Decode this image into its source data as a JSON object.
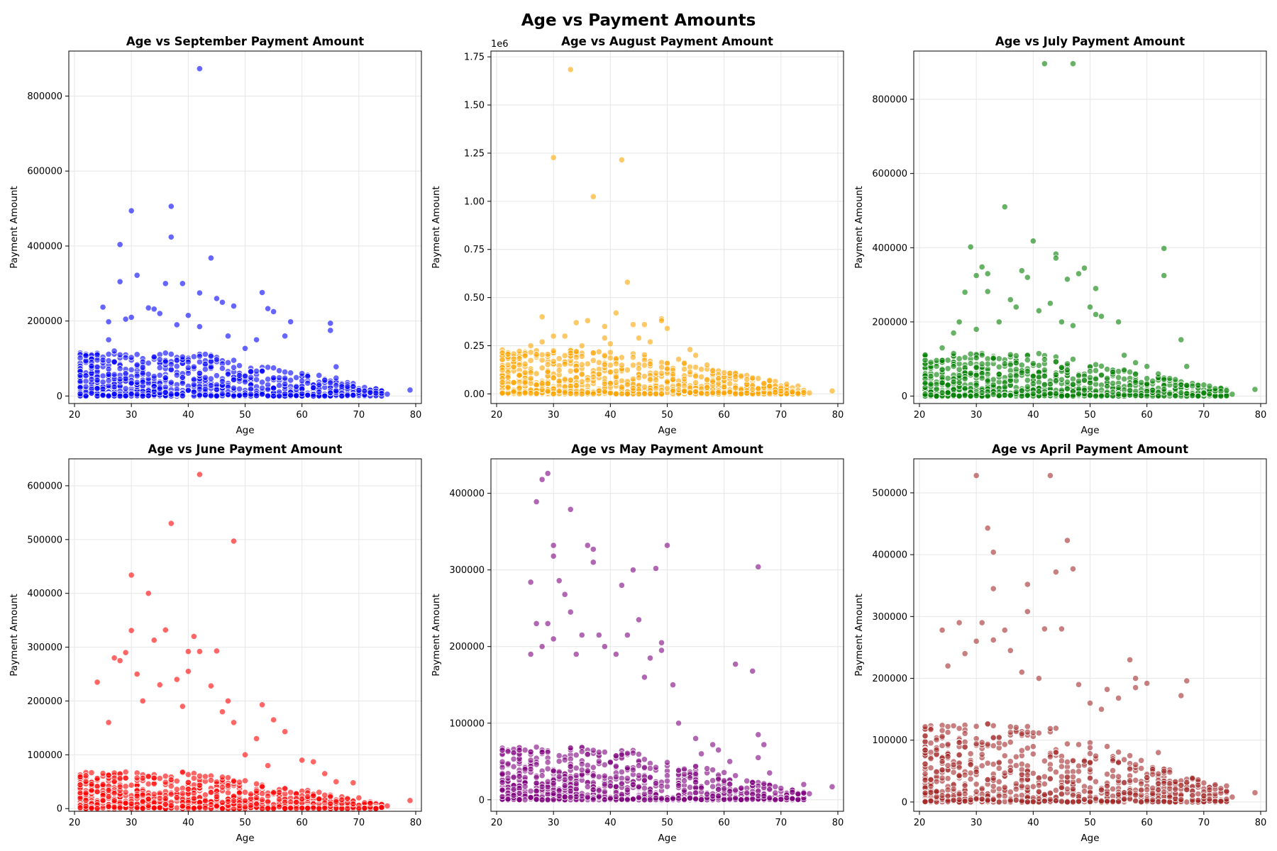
{
  "figure": {
    "suptitle": "Age vs Payment Amounts"
  },
  "chart_data": [
    {
      "type": "scatter",
      "title": "Age vs September Payment Amount",
      "xlabel": "Age",
      "ylabel": "Payment Amount",
      "color": "#0000ff",
      "xlim": [
        19,
        81
      ],
      "ylim": [
        -20000,
        920000
      ],
      "xticks": [
        20,
        30,
        40,
        50,
        60,
        70,
        80
      ],
      "yticks": [
        0,
        200000,
        400000,
        600000,
        800000
      ],
      "yticklabels": [
        "0",
        "200000",
        "400000",
        "600000",
        "800000"
      ],
      "offset_label": "",
      "grid": true,
      "density_ymax": 100000,
      "points": [
        [
          42,
          873000
        ],
        [
          37,
          506000
        ],
        [
          30,
          494000
        ],
        [
          37,
          424000
        ],
        [
          28,
          404000
        ],
        [
          44,
          368000
        ],
        [
          31,
          322000
        ],
        [
          28,
          305000
        ],
        [
          36,
          300000
        ],
        [
          39,
          300000
        ],
        [
          53,
          276000
        ],
        [
          42,
          275000
        ],
        [
          45,
          260000
        ],
        [
          46,
          250000
        ],
        [
          48,
          240000
        ],
        [
          54,
          233000
        ],
        [
          55,
          225000
        ],
        [
          25,
          237000
        ],
        [
          33,
          235000
        ],
        [
          34,
          232000
        ],
        [
          35,
          220000
        ],
        [
          26,
          198000
        ],
        [
          29,
          205000
        ],
        [
          30,
          210000
        ],
        [
          40,
          215000
        ],
        [
          58,
          198000
        ],
        [
          65,
          194000
        ],
        [
          65,
          175000
        ],
        [
          57,
          160000
        ],
        [
          50,
          127000
        ],
        [
          60,
          60000
        ],
        [
          63,
          55000
        ],
        [
          66,
          78000
        ],
        [
          66,
          48000
        ],
        [
          68,
          25000
        ],
        [
          70,
          15000
        ],
        [
          72,
          10000
        ],
        [
          73,
          8000
        ],
        [
          75,
          5000
        ],
        [
          79,
          16000
        ],
        [
          38,
          190000
        ],
        [
          42,
          185000
        ],
        [
          47,
          160000
        ],
        [
          52,
          150000
        ],
        [
          23,
          80000
        ],
        [
          24,
          110000
        ],
        [
          26,
          150000
        ],
        [
          27,
          120000
        ]
      ]
    },
    {
      "type": "scatter",
      "title": "Age vs August Payment Amount",
      "xlabel": "Age",
      "ylabel": "Payment Amount",
      "color": "#ffa500",
      "xlim": [
        19,
        81
      ],
      "ylim": [
        -50000,
        1780000
      ],
      "xticks": [
        20,
        30,
        40,
        50,
        60,
        70,
        80
      ],
      "yticks": [
        0,
        250000,
        500000,
        750000,
        1000000,
        1250000,
        1500000,
        1750000
      ],
      "yticklabels": [
        "0.00",
        "0.25",
        "0.50",
        "0.75",
        "1.00",
        "1.25",
        "1.50",
        "1.75"
      ],
      "offset_label": "1e6",
      "grid": true,
      "density_ymax": 200000,
      "points": [
        [
          33,
          1684000
        ],
        [
          30,
          1227000
        ],
        [
          42,
          1215000
        ],
        [
          37,
          1024000
        ],
        [
          43,
          580000
        ],
        [
          41,
          420000
        ],
        [
          28,
          400000
        ],
        [
          36,
          380000
        ],
        [
          49,
          390000
        ],
        [
          49,
          380000
        ],
        [
          34,
          370000
        ],
        [
          39,
          350000
        ],
        [
          44,
          360000
        ],
        [
          46,
          360000
        ],
        [
          30,
          300000
        ],
        [
          32,
          300000
        ],
        [
          39,
          290000
        ],
        [
          45,
          290000
        ],
        [
          50,
          340000
        ],
        [
          54,
          230000
        ],
        [
          57,
          150000
        ],
        [
          60,
          110000
        ],
        [
          62,
          90000
        ],
        [
          64,
          75000
        ],
        [
          66,
          80000
        ],
        [
          68,
          40000
        ],
        [
          70,
          15000
        ],
        [
          72,
          10000
        ],
        [
          75,
          5000
        ],
        [
          79,
          15000
        ],
        [
          26,
          250000
        ],
        [
          28,
          270000
        ],
        [
          35,
          250000
        ],
        [
          40,
          260000
        ],
        [
          47,
          270000
        ],
        [
          52,
          180000
        ],
        [
          55,
          200000
        ],
        [
          58,
          120000
        ]
      ]
    },
    {
      "type": "scatter",
      "title": "Age vs July Payment Amount",
      "xlabel": "Age",
      "ylabel": "Payment Amount",
      "color": "#008000",
      "xlim": [
        19,
        81
      ],
      "ylim": [
        -20000,
        930000
      ],
      "xticks": [
        20,
        30,
        40,
        50,
        60,
        70,
        80
      ],
      "yticks": [
        0,
        200000,
        400000,
        600000,
        800000
      ],
      "yticklabels": [
        "0",
        "200000",
        "400000",
        "600000",
        "800000"
      ],
      "offset_label": "",
      "grid": true,
      "density_ymax": 100000,
      "points": [
        [
          42,
          896000
        ],
        [
          47,
          896000
        ],
        [
          35,
          510000
        ],
        [
          40,
          418000
        ],
        [
          29,
          402000
        ],
        [
          63,
          398000
        ],
        [
          44,
          383000
        ],
        [
          44,
          372000
        ],
        [
          31,
          348000
        ],
        [
          38,
          338000
        ],
        [
          49,
          345000
        ],
        [
          48,
          330000
        ],
        [
          30,
          325000
        ],
        [
          32,
          330000
        ],
        [
          39,
          320000
        ],
        [
          63,
          325000
        ],
        [
          46,
          315000
        ],
        [
          51,
          290000
        ],
        [
          28,
          280000
        ],
        [
          32,
          282000
        ],
        [
          36,
          260000
        ],
        [
          43,
          250000
        ],
        [
          41,
          230000
        ],
        [
          50,
          240000
        ],
        [
          37,
          240000
        ],
        [
          51,
          220000
        ],
        [
          52,
          215000
        ],
        [
          55,
          200000
        ],
        [
          66,
          152000
        ],
        [
          60,
          80000
        ],
        [
          62,
          60000
        ],
        [
          67,
          80000
        ],
        [
          70,
          30000
        ],
        [
          72,
          20000
        ],
        [
          74,
          15000
        ],
        [
          75,
          5000
        ],
        [
          79,
          18000
        ],
        [
          24,
          130000
        ],
        [
          26,
          170000
        ],
        [
          27,
          200000
        ],
        [
          30,
          180000
        ],
        [
          34,
          200000
        ],
        [
          45,
          200000
        ],
        [
          47,
          190000
        ],
        [
          56,
          110000
        ],
        [
          58,
          90000
        ]
      ]
    },
    {
      "type": "scatter",
      "title": "Age vs June Payment Amount",
      "xlabel": "Age",
      "ylabel": "Payment Amount",
      "color": "#ff0000",
      "xlim": [
        19,
        81
      ],
      "ylim": [
        -5000,
        650000
      ],
      "xticks": [
        20,
        30,
        40,
        50,
        60,
        70,
        80
      ],
      "yticks": [
        0,
        100000,
        200000,
        300000,
        400000,
        500000,
        600000
      ],
      "yticklabels": [
        "0",
        "100000",
        "200000",
        "300000",
        "400000",
        "500000",
        "600000"
      ],
      "offset_label": "",
      "grid": true,
      "density_ymax": 60000,
      "points": [
        [
          42,
          621000
        ],
        [
          37,
          530000
        ],
        [
          48,
          497000
        ],
        [
          30,
          434000
        ],
        [
          33,
          400000
        ],
        [
          36,
          332000
        ],
        [
          30,
          331000
        ],
        [
          34,
          313000
        ],
        [
          41,
          320000
        ],
        [
          40,
          292000
        ],
        [
          42,
          292000
        ],
        [
          45,
          293000
        ],
        [
          28,
          275000
        ],
        [
          29,
          290000
        ],
        [
          31,
          250000
        ],
        [
          35,
          230000
        ],
        [
          40,
          255000
        ],
        [
          24,
          235000
        ],
        [
          27,
          280000
        ],
        [
          38,
          240000
        ],
        [
          44,
          228000
        ],
        [
          47,
          200000
        ],
        [
          53,
          193000
        ],
        [
          48,
          160000
        ],
        [
          55,
          165000
        ],
        [
          57,
          143000
        ],
        [
          52,
          130000
        ],
        [
          60,
          90000
        ],
        [
          62,
          87000
        ],
        [
          64,
          65000
        ],
        [
          66,
          50000
        ],
        [
          69,
          48000
        ],
        [
          70,
          20000
        ],
        [
          72,
          10000
        ],
        [
          75,
          5000
        ],
        [
          79,
          15000
        ],
        [
          26,
          160000
        ],
        [
          32,
          200000
        ],
        [
          39,
          190000
        ],
        [
          46,
          180000
        ],
        [
          50,
          100000
        ],
        [
          54,
          80000
        ]
      ]
    },
    {
      "type": "scatter",
      "title": "Age vs May Payment Amount",
      "xlabel": "Age",
      "ylabel": "Payment Amount",
      "color": "#800080",
      "xlim": [
        19,
        81
      ],
      "ylim": [
        -15000,
        445000
      ],
      "xticks": [
        20,
        30,
        40,
        50,
        60,
        70,
        80
      ],
      "yticks": [
        0,
        100000,
        200000,
        300000,
        400000
      ],
      "yticklabels": [
        "0",
        "100000",
        "200000",
        "300000",
        "400000"
      ],
      "offset_label": "",
      "grid": true,
      "density_ymax": 60000,
      "points": [
        [
          29,
          426000
        ],
        [
          28,
          418000
        ],
        [
          27,
          389000
        ],
        [
          33,
          379000
        ],
        [
          30,
          332000
        ],
        [
          50,
          332000
        ],
        [
          36,
          332000
        ],
        [
          37,
          327000
        ],
        [
          30,
          318000
        ],
        [
          37,
          310000
        ],
        [
          66,
          304000
        ],
        [
          48,
          302000
        ],
        [
          44,
          300000
        ],
        [
          31,
          286000
        ],
        [
          26,
          284000
        ],
        [
          42,
          280000
        ],
        [
          32,
          268000
        ],
        [
          33,
          245000
        ],
        [
          45,
          235000
        ],
        [
          43,
          215000
        ],
        [
          38,
          215000
        ],
        [
          35,
          215000
        ],
        [
          29,
          230000
        ],
        [
          27,
          230000
        ],
        [
          62,
          177000
        ],
        [
          65,
          168000
        ],
        [
          49,
          205000
        ],
        [
          49,
          195000
        ],
        [
          47,
          185000
        ],
        [
          51,
          150000
        ],
        [
          52,
          100000
        ],
        [
          55,
          80000
        ],
        [
          58,
          72000
        ],
        [
          59,
          65000
        ],
        [
          61,
          50000
        ],
        [
          66,
          85000
        ],
        [
          67,
          72000
        ],
        [
          66,
          55000
        ],
        [
          68,
          35000
        ],
        [
          70,
          15000
        ],
        [
          72,
          10000
        ],
        [
          74,
          20000
        ],
        [
          75,
          8000
        ],
        [
          79,
          17000
        ],
        [
          26,
          190000
        ],
        [
          28,
          200000
        ],
        [
          30,
          210000
        ],
        [
          34,
          190000
        ],
        [
          39,
          200000
        ],
        [
          41,
          190000
        ],
        [
          46,
          160000
        ],
        [
          56,
          60000
        ]
      ]
    },
    {
      "type": "scatter",
      "title": "Age vs April Payment Amount",
      "xlabel": "Age",
      "ylabel": "Payment Amount",
      "color": "#a52a2a",
      "xlim": [
        19,
        81
      ],
      "ylim": [
        -15000,
        555000
      ],
      "xticks": [
        20,
        30,
        40,
        50,
        60,
        70,
        80
      ],
      "yticks": [
        0,
        100000,
        200000,
        300000,
        400000,
        500000
      ],
      "yticklabels": [
        "0",
        "100000",
        "200000",
        "300000",
        "400000",
        "500000"
      ],
      "offset_label": "",
      "grid": true,
      "density_ymax": 110000,
      "points": [
        [
          30,
          528000
        ],
        [
          43,
          528000
        ],
        [
          32,
          443000
        ],
        [
          46,
          423000
        ],
        [
          33,
          404000
        ],
        [
          47,
          377000
        ],
        [
          44,
          372000
        ],
        [
          39,
          352000
        ],
        [
          33,
          345000
        ],
        [
          39,
          308000
        ],
        [
          27,
          290000
        ],
        [
          31,
          290000
        ],
        [
          42,
          280000
        ],
        [
          45,
          280000
        ],
        [
          24,
          278000
        ],
        [
          35,
          278000
        ],
        [
          36,
          245000
        ],
        [
          30,
          260000
        ],
        [
          33,
          262000
        ],
        [
          57,
          230000
        ],
        [
          58,
          200000
        ],
        [
          60,
          192000
        ],
        [
          58,
          185000
        ],
        [
          67,
          196000
        ],
        [
          66,
          172000
        ],
        [
          55,
          168000
        ],
        [
          53,
          182000
        ],
        [
          52,
          150000
        ],
        [
          62,
          80000
        ],
        [
          63,
          50000
        ],
        [
          64,
          30000
        ],
        [
          67,
          20000
        ],
        [
          70,
          10000
        ],
        [
          72,
          28000
        ],
        [
          74,
          26000
        ],
        [
          75,
          8000
        ],
        [
          79,
          15000
        ],
        [
          25,
          220000
        ],
        [
          28,
          240000
        ],
        [
          38,
          210000
        ],
        [
          41,
          200000
        ],
        [
          48,
          190000
        ],
        [
          50,
          160000
        ]
      ]
    }
  ]
}
